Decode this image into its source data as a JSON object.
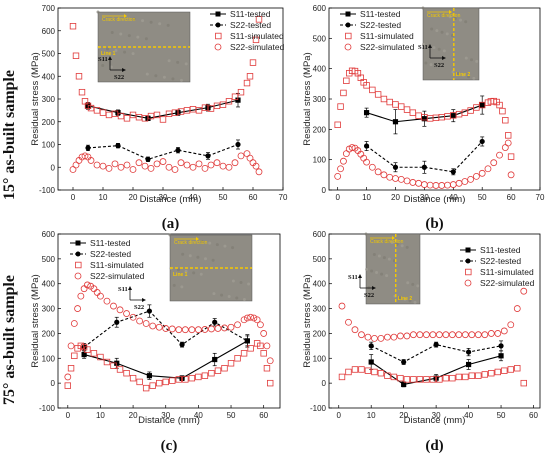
{
  "row_labels": [
    "15° as-built sample",
    "75° as-built sample"
  ],
  "inset_text": {
    "crack_direction": "Crack direction",
    "s11": "S11",
    "s22": "S22"
  },
  "colors": {
    "tested": "#000000",
    "simulated_s11": "#e03a3a",
    "simulated_s22": "#e03a3a",
    "inset_line": "#f5c800",
    "inset_bg": "#8f8c84"
  },
  "chart_data": [
    {
      "type": "scatter",
      "panel_label": "(a)",
      "xlabel": "Distance (mm)",
      "ylabel": "Residual stress (MPa)",
      "xlim": [
        -5,
        70
      ],
      "ylim": [
        -100,
        700
      ],
      "xticks": [
        0,
        10,
        20,
        30,
        40,
        50,
        60,
        70
      ],
      "yticks": [
        -100,
        0,
        100,
        200,
        300,
        400,
        500,
        600,
        700
      ],
      "legend_position": "top-right",
      "inset_line": "Line 1",
      "inset_line_orientation": "horizontal",
      "series": [
        {
          "name": "S11-tested",
          "style": "solid-square",
          "x": [
            5,
            15,
            25,
            35,
            45,
            55
          ],
          "y": [
            270,
            240,
            215,
            240,
            262,
            295
          ],
          "err": [
            15,
            12,
            10,
            12,
            15,
            30
          ]
        },
        {
          "name": "S22-tested",
          "style": "dash-circle",
          "x": [
            5,
            15,
            25,
            35,
            45,
            55
          ],
          "y": [
            85,
            95,
            35,
            75,
            50,
            100
          ],
          "err": [
            12,
            10,
            10,
            12,
            15,
            20
          ]
        },
        {
          "name": "S11-simulated",
          "style": "open-square",
          "x": [
            0,
            1,
            2,
            3,
            4,
            5,
            6,
            8,
            10,
            12,
            14,
            16,
            18,
            20,
            22,
            24,
            26,
            28,
            30,
            32,
            34,
            36,
            38,
            40,
            42,
            44,
            46,
            48,
            50,
            52,
            54,
            56,
            58,
            59,
            60,
            61,
            62
          ],
          "y": [
            620,
            490,
            400,
            330,
            290,
            270,
            260,
            250,
            240,
            230,
            235,
            225,
            215,
            230,
            220,
            215,
            225,
            230,
            210,
            235,
            240,
            245,
            250,
            255,
            250,
            262,
            258,
            270,
            275,
            290,
            310,
            330,
            370,
            400,
            460,
            560,
            650
          ]
        },
        {
          "name": "S22-simulated",
          "style": "open-circle",
          "x": [
            0,
            1,
            2,
            3,
            4,
            5,
            6,
            8,
            10,
            12,
            14,
            16,
            18,
            20,
            22,
            24,
            26,
            28,
            30,
            32,
            34,
            36,
            38,
            40,
            42,
            44,
            46,
            48,
            50,
            52,
            54,
            56,
            58,
            59,
            60,
            61,
            62
          ],
          "y": [
            -10,
            10,
            30,
            45,
            50,
            45,
            30,
            10,
            5,
            -5,
            15,
            0,
            10,
            -10,
            20,
            5,
            -5,
            15,
            25,
            0,
            -10,
            20,
            10,
            0,
            15,
            -5,
            10,
            20,
            5,
            0,
            20,
            50,
            60,
            40,
            20,
            5,
            -20
          ]
        }
      ]
    },
    {
      "type": "scatter",
      "panel_label": "(b)",
      "xlabel": "Distance (mm)",
      "ylabel": "Residual stress (MPa)",
      "xlim": [
        -3,
        70
      ],
      "ylim": [
        0,
        600
      ],
      "xticks": [
        0,
        10,
        20,
        30,
        40,
        50,
        60,
        70
      ],
      "yticks": [
        0,
        100,
        200,
        300,
        400,
        500,
        600
      ],
      "legend_position": "top-left",
      "inset_line": "Line 2",
      "inset_line_orientation": "vertical",
      "series": [
        {
          "name": "S11-tested",
          "style": "solid-square",
          "x": [
            10,
            20,
            30,
            40,
            50
          ],
          "y": [
            255,
            225,
            235,
            245,
            280
          ],
          "err": [
            15,
            40,
            25,
            20,
            30
          ]
        },
        {
          "name": "S22-tested",
          "style": "dash-circle",
          "x": [
            10,
            20,
            30,
            40,
            50
          ],
          "y": [
            145,
            75,
            75,
            60,
            160
          ],
          "err": [
            15,
            15,
            20,
            10,
            15
          ]
        },
        {
          "name": "S11-simulated",
          "style": "open-square",
          "x": [
            0,
            1,
            2,
            3,
            4,
            5,
            6,
            7,
            8,
            9,
            10,
            12,
            14,
            16,
            18,
            20,
            22,
            24,
            26,
            28,
            30,
            32,
            34,
            36,
            38,
            40,
            42,
            44,
            46,
            48,
            50,
            52,
            53,
            54,
            55,
            56,
            57,
            58,
            59,
            60
          ],
          "y": [
            215,
            275,
            320,
            360,
            385,
            393,
            392,
            385,
            370,
            355,
            345,
            330,
            315,
            300,
            290,
            282,
            275,
            265,
            255,
            245,
            240,
            236,
            238,
            240,
            243,
            246,
            250,
            255,
            262,
            272,
            280,
            288,
            292,
            293,
            290,
            280,
            260,
            230,
            180,
            110
          ]
        },
        {
          "name": "S22-simulated",
          "style": "open-circle",
          "x": [
            0,
            1,
            2,
            3,
            4,
            5,
            6,
            7,
            8,
            9,
            10,
            12,
            14,
            16,
            18,
            20,
            22,
            24,
            26,
            28,
            30,
            32,
            34,
            36,
            38,
            40,
            42,
            44,
            46,
            48,
            50,
            52,
            54,
            56,
            58,
            59,
            60
          ],
          "y": [
            45,
            70,
            95,
            120,
            135,
            140,
            138,
            130,
            118,
            105,
            92,
            75,
            60,
            50,
            42,
            38,
            35,
            30,
            25,
            22,
            18,
            16,
            15,
            15,
            16,
            18,
            22,
            28,
            35,
            45,
            55,
            70,
            90,
            115,
            140,
            155,
            50
          ]
        }
      ]
    },
    {
      "type": "scatter",
      "panel_label": "(c)",
      "xlabel": "Distance (mm)",
      "ylabel": "Residual stress (MPa)",
      "xlim": [
        -3,
        65
      ],
      "ylim": [
        -100,
        600
      ],
      "xticks": [
        0,
        10,
        20,
        30,
        40,
        50,
        60
      ],
      "yticks": [
        -100,
        0,
        100,
        200,
        300,
        400,
        500,
        600
      ],
      "legend_position": "top-left",
      "inset_line": "Line 1",
      "inset_line_orientation": "horizontal",
      "series": [
        {
          "name": "S11-tested",
          "style": "solid-square",
          "x": [
            5,
            15,
            25,
            35,
            45,
            55
          ],
          "y": [
            115,
            80,
            30,
            20,
            95,
            170
          ],
          "err": [
            15,
            20,
            15,
            10,
            25,
            25
          ]
        },
        {
          "name": "S22-tested",
          "style": "dash-circle",
          "x": [
            5,
            15,
            25,
            35,
            45,
            55
          ],
          "y": [
            145,
            245,
            290,
            155,
            245,
            170
          ],
          "err": [
            15,
            20,
            25,
            10,
            15,
            20
          ]
        },
        {
          "name": "S11-simulated",
          "style": "open-square",
          "x": [
            0,
            1,
            2,
            3,
            4,
            5,
            6,
            8,
            10,
            12,
            14,
            16,
            18,
            20,
            22,
            24,
            26,
            28,
            30,
            32,
            34,
            36,
            38,
            40,
            42,
            44,
            46,
            48,
            50,
            52,
            54,
            56,
            58,
            59,
            60,
            61,
            62
          ],
          "y": [
            -10,
            60,
            110,
            140,
            150,
            145,
            135,
            120,
            105,
            85,
            70,
            55,
            40,
            20,
            5,
            -20,
            -10,
            0,
            5,
            10,
            15,
            15,
            20,
            25,
            30,
            40,
            50,
            60,
            80,
            100,
            120,
            140,
            160,
            150,
            120,
            60,
            0
          ]
        },
        {
          "name": "S22-simulated",
          "style": "open-circle",
          "x": [
            0,
            1,
            2,
            3,
            4,
            5,
            6,
            7,
            8,
            9,
            10,
            12,
            14,
            16,
            18,
            20,
            22,
            24,
            26,
            28,
            30,
            32,
            34,
            36,
            38,
            40,
            42,
            44,
            46,
            48,
            50,
            52,
            54,
            55,
            56,
            57,
            58,
            59,
            60,
            61,
            62
          ],
          "y": [
            25,
            150,
            240,
            300,
            350,
            380,
            395,
            390,
            380,
            365,
            350,
            330,
            310,
            295,
            280,
            265,
            250,
            240,
            230,
            225,
            220,
            218,
            215,
            215,
            215,
            215,
            216,
            218,
            220,
            222,
            225,
            235,
            255,
            262,
            265,
            262,
            255,
            235,
            200,
            150,
            90
          ]
        }
      ]
    },
    {
      "type": "scatter",
      "panel_label": "(d)",
      "xlabel": "Distance (mm)",
      "ylabel": "Residual stress (MPa)",
      "xlim": [
        -3,
        62
      ],
      "ylim": [
        -100,
        600
      ],
      "xticks": [
        0,
        10,
        20,
        30,
        40,
        50,
        60
      ],
      "yticks": [
        -100,
        0,
        100,
        200,
        300,
        400,
        500,
        600
      ],
      "legend_position": "top-right",
      "inset_line": "Line 2",
      "inset_line_orientation": "vertical",
      "series": [
        {
          "name": "S11-tested",
          "style": "solid-square",
          "x": [
            10,
            20,
            30,
            40,
            50
          ],
          "y": [
            85,
            -5,
            20,
            75,
            110
          ],
          "err": [
            30,
            10,
            15,
            20,
            20
          ]
        },
        {
          "name": "S22-tested",
          "style": "dash-circle",
          "x": [
            10,
            20,
            30,
            40,
            50
          ],
          "y": [
            150,
            85,
            155,
            125,
            150
          ],
          "err": [
            15,
            10,
            10,
            15,
            20
          ]
        },
        {
          "name": "S11-simulated",
          "style": "open-square",
          "x": [
            1,
            3,
            5,
            7,
            9,
            11,
            13,
            15,
            17,
            19,
            21,
            23,
            25,
            27,
            29,
            31,
            33,
            35,
            37,
            39,
            41,
            43,
            45,
            47,
            49,
            51,
            53,
            55,
            57
          ],
          "y": [
            25,
            45,
            55,
            55,
            50,
            45,
            40,
            30,
            25,
            20,
            15,
            15,
            15,
            15,
            15,
            15,
            20,
            20,
            25,
            25,
            30,
            30,
            35,
            40,
            45,
            50,
            55,
            60,
            0
          ]
        },
        {
          "name": "S22-simulated",
          "style": "open-circle",
          "x": [
            1,
            3,
            5,
            7,
            9,
            11,
            13,
            15,
            17,
            19,
            21,
            23,
            25,
            27,
            29,
            31,
            33,
            35,
            37,
            39,
            41,
            43,
            45,
            47,
            49,
            51,
            53,
            55,
            57
          ],
          "y": [
            310,
            245,
            215,
            195,
            185,
            180,
            180,
            185,
            185,
            190,
            190,
            195,
            195,
            195,
            195,
            195,
            195,
            195,
            195,
            195,
            195,
            195,
            195,
            200,
            200,
            210,
            235,
            300,
            370
          ]
        }
      ]
    }
  ]
}
